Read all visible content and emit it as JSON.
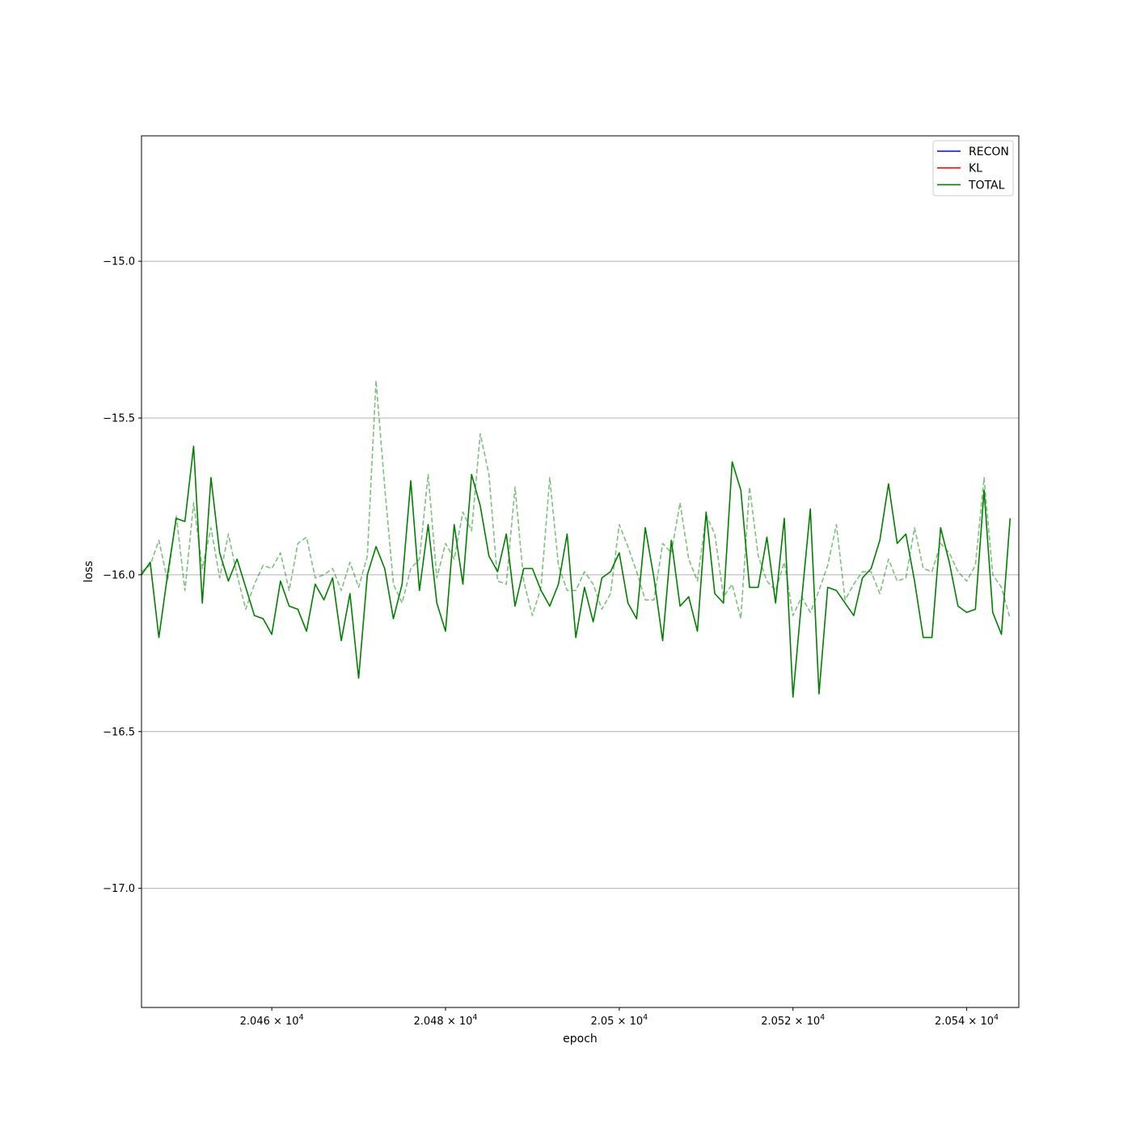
{
  "chart_data": {
    "type": "line",
    "title": "",
    "xlabel": "epoch",
    "ylabel": "loss",
    "x_start": 20445,
    "x_step": 1,
    "xlim": [
      20445,
      20546
    ],
    "ylim": [
      -17.38,
      -14.6
    ],
    "x_ticks": [
      {
        "value": 20460,
        "mantissa": "2.046",
        "base": "10",
        "exp": "4"
      },
      {
        "value": 20480,
        "mantissa": "2.048",
        "base": "10",
        "exp": "4"
      },
      {
        "value": 20500,
        "mantissa": "2.05",
        "base": "10",
        "exp": "4"
      },
      {
        "value": 20520,
        "mantissa": "2.052",
        "base": "10",
        "exp": "4"
      },
      {
        "value": 20540,
        "mantissa": "2.054",
        "base": "10",
        "exp": "4"
      }
    ],
    "y_ticks": [
      {
        "value": -15.0,
        "label": "−15.0"
      },
      {
        "value": -15.5,
        "label": "−15.5"
      },
      {
        "value": -16.0,
        "label": "−16.0"
      },
      {
        "value": -16.5,
        "label": "−16.5"
      },
      {
        "value": -17.0,
        "label": "−17.0"
      }
    ],
    "grid": "horizontal",
    "legend_position": "top-right",
    "legend": [
      {
        "label": "RECON",
        "color": "#0000ff"
      },
      {
        "label": "KL",
        "color": "#ff0000"
      },
      {
        "label": "TOTAL",
        "color": "#008000"
      }
    ],
    "series": [
      {
        "name": "TOTAL",
        "color": "#008000",
        "style": "solid",
        "values": [
          -16.0,
          -15.96,
          -16.2,
          -16.0,
          -15.82,
          -15.83,
          -15.59,
          -16.09,
          -15.69,
          -15.93,
          -16.02,
          -15.95,
          -16.04,
          -16.13,
          -16.14,
          -16.19,
          -16.02,
          -16.1,
          -16.11,
          -16.18,
          -16.03,
          -16.08,
          -16.01,
          -16.21,
          -16.06,
          -16.33,
          -16.0,
          -15.91,
          -15.98,
          -16.14,
          -16.03,
          -15.7,
          -16.05,
          -15.84,
          -16.09,
          -16.18,
          -15.84,
          -16.03,
          -15.68,
          -15.78,
          -15.94,
          -15.99,
          -15.87,
          -16.1,
          -15.98,
          -15.98,
          -16.05,
          -16.1,
          -16.03,
          -15.87,
          -16.2,
          -16.04,
          -16.15,
          -16.01,
          -15.99,
          -15.93,
          -16.09,
          -16.14,
          -15.85,
          -16.01,
          -16.21,
          -15.89,
          -16.1,
          -16.07,
          -16.18,
          -15.8,
          -16.06,
          -16.09,
          -15.64,
          -15.73,
          -16.04,
          -16.04,
          -15.88,
          -16.09,
          -15.82,
          -16.39,
          -16.08,
          -15.79,
          -16.38,
          -16.04,
          -16.05,
          -16.09,
          -16.13,
          -16.01,
          -15.98,
          -15.89,
          -15.71,
          -15.9,
          -15.87,
          -16.02,
          -16.2,
          -16.2,
          -15.85,
          -15.96,
          -16.1,
          -16.12,
          -16.11,
          -15.73,
          -16.12,
          -16.19,
          -15.82
        ]
      },
      {
        "name": "",
        "color": "#008000",
        "style": "dashed",
        "opacity": 0.5,
        "values": [
          -15.99,
          -15.97,
          -15.89,
          -16.02,
          -15.81,
          -16.05,
          -15.77,
          -15.98,
          -15.85,
          -16.01,
          -15.87,
          -16.0,
          -16.11,
          -16.03,
          -15.97,
          -15.98,
          -15.93,
          -16.05,
          -15.9,
          -15.88,
          -16.01,
          -16.0,
          -15.98,
          -16.05,
          -15.96,
          -16.04,
          -15.94,
          -15.38,
          -15.72,
          -16.03,
          -16.09,
          -15.98,
          -15.95,
          -15.68,
          -16.01,
          -15.9,
          -15.95,
          -15.8,
          -15.86,
          -15.55,
          -15.68,
          -16.02,
          -16.03,
          -15.72,
          -16.02,
          -16.13,
          -16.04,
          -15.69,
          -15.97,
          -16.05,
          -16.05,
          -15.99,
          -16.03,
          -16.11,
          -16.06,
          -15.84,
          -15.91,
          -15.99,
          -16.08,
          -16.08,
          -15.9,
          -15.93,
          -15.77,
          -15.95,
          -16.02,
          -15.81,
          -15.87,
          -16.07,
          -16.03,
          -16.14,
          -15.72,
          -15.94,
          -16.02,
          -16.05,
          -15.96,
          -16.13,
          -16.07,
          -16.12,
          -16.05,
          -15.97,
          -15.84,
          -16.08,
          -16.03,
          -15.99,
          -15.99,
          -16.06,
          -15.95,
          -16.02,
          -16.01,
          -15.85,
          -15.98,
          -15.99,
          -15.9,
          -15.93,
          -15.99,
          -16.02,
          -15.97,
          -15.69,
          -16.0,
          -16.04,
          -16.14
        ]
      }
    ]
  }
}
